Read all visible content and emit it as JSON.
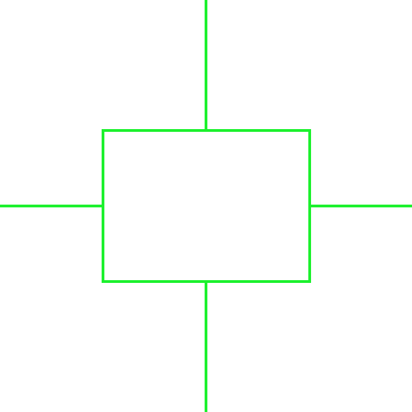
{
  "colors": {
    "background": "#ffffff",
    "stroke": "#1cf12d"
  }
}
